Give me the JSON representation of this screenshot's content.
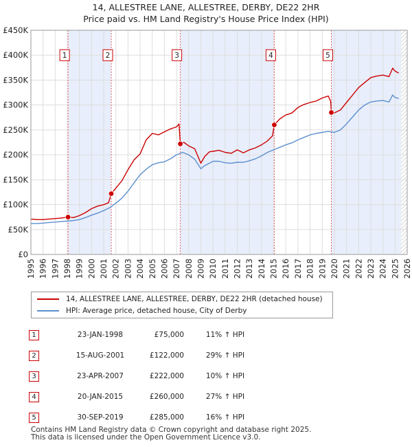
{
  "title": {
    "line1": "14, ALLESTREE LANE, ALLESTREE, DERBY, DE22 2HR",
    "line2": "Price paid vs. HM Land Registry's House Price Index (HPI)"
  },
  "colors": {
    "property": "#cc0000",
    "hpi": "#5b8fd0",
    "shade": "#e8eefb",
    "vline": "#e06060"
  },
  "chart_data": {
    "type": "line",
    "xlim": [
      1995,
      2026
    ],
    "ylim": [
      0,
      450000
    ],
    "x_ticks": [
      "1995",
      "1996",
      "1997",
      "1998",
      "1999",
      "2000",
      "2001",
      "2002",
      "2003",
      "2004",
      "2005",
      "2006",
      "2007",
      "2008",
      "2009",
      "2010",
      "2011",
      "2012",
      "2013",
      "2014",
      "2015",
      "2016",
      "2017",
      "2018",
      "2019",
      "2020",
      "2021",
      "2022",
      "2023",
      "2024",
      "2025",
      "2026"
    ],
    "y_ticks": [
      {
        "value": 0,
        "label": "£0"
      },
      {
        "value": 50000,
        "label": "£50K"
      },
      {
        "value": 100000,
        "label": "£100K"
      },
      {
        "value": 150000,
        "label": "£150K"
      },
      {
        "value": 200000,
        "label": "£200K"
      },
      {
        "value": 250000,
        "label": "£250K"
      },
      {
        "value": 300000,
        "label": "£300K"
      },
      {
        "value": 350000,
        "label": "£350K"
      },
      {
        "value": 400000,
        "label": "£400K"
      },
      {
        "value": 450000,
        "label": "£450K"
      }
    ],
    "shaded_periods": [
      [
        1998.06,
        2001.62
      ],
      [
        2007.31,
        2015.05
      ],
      [
        2019.75,
        2025.5
      ]
    ],
    "hatched_from": 2025.5,
    "series": [
      {
        "name": "14, ALLESTREE LANE, ALLESTREE, DERBY, DE22 2HR (detached house)",
        "color": "#cc0000",
        "x": [
          1995,
          1995.5,
          1996,
          1996.5,
          1997,
          1997.5,
          1998.06,
          1998.5,
          1999,
          1999.5,
          2000,
          2000.5,
          2001,
          2001.4,
          2001.62,
          2002,
          2002.5,
          2003,
          2003.5,
          2004,
          2004.5,
          2005,
          2005.5,
          2006,
          2006.5,
          2007,
          2007.2,
          2007.31,
          2007.6,
          2008,
          2008.5,
          2009,
          2009.3,
          2009.7,
          2010,
          2010.5,
          2011,
          2011.5,
          2012,
          2012.5,
          2013,
          2013.5,
          2014,
          2014.5,
          2014.9,
          2015.05,
          2015.5,
          2016,
          2016.5,
          2017,
          2017.5,
          2018,
          2018.5,
          2019,
          2019.5,
          2019.7,
          2019.75,
          2020,
          2020.5,
          2021,
          2021.5,
          2022,
          2022.5,
          2023,
          2023.5,
          2024,
          2024.5,
          2024.8,
          2025,
          2025.3
        ],
        "y": [
          71000,
          70000,
          70000,
          71000,
          72000,
          73000,
          75000,
          74000,
          78000,
          84000,
          92000,
          97000,
          100000,
          104000,
          122000,
          133000,
          148000,
          170000,
          190000,
          202000,
          230000,
          243000,
          240000,
          246000,
          252000,
          256000,
          262000,
          222000,
          225000,
          218000,
          212000,
          183000,
          196000,
          206000,
          207000,
          209000,
          205000,
          203000,
          210000,
          204000,
          210000,
          214000,
          220000,
          228000,
          238000,
          260000,
          272000,
          280000,
          284000,
          295000,
          301000,
          305000,
          308000,
          314000,
          318000,
          307000,
          285000,
          284000,
          290000,
          305000,
          320000,
          335000,
          345000,
          355000,
          358000,
          360000,
          357000,
          374000,
          368000,
          364000
        ]
      },
      {
        "name": "HPI: Average price, detached house, City of Derby",
        "color": "#5b8fd0",
        "x": [
          1995,
          1995.5,
          1996,
          1996.5,
          1997,
          1997.5,
          1998,
          1998.5,
          1999,
          1999.5,
          2000,
          2000.5,
          2001,
          2001.5,
          2002,
          2002.5,
          2003,
          2003.5,
          2004,
          2004.5,
          2005,
          2005.5,
          2006,
          2006.5,
          2007,
          2007.5,
          2008,
          2008.5,
          2009,
          2009.3,
          2009.7,
          2010,
          2010.5,
          2011,
          2011.5,
          2012,
          2012.5,
          2013,
          2013.5,
          2014,
          2014.5,
          2015,
          2015.5,
          2016,
          2016.5,
          2017,
          2017.5,
          2018,
          2018.5,
          2019,
          2019.5,
          2020,
          2020.5,
          2021,
          2021.5,
          2022,
          2022.5,
          2023,
          2023.5,
          2024,
          2024.5,
          2024.8,
          2025,
          2025.3
        ],
        "y": [
          62000,
          62000,
          63000,
          64000,
          65000,
          66000,
          67000,
          68000,
          70000,
          74000,
          79000,
          83000,
          88000,
          94000,
          103000,
          113000,
          127000,
          144000,
          160000,
          171000,
          180000,
          184000,
          186000,
          192000,
          200000,
          205000,
          200000,
          191000,
          172000,
          178000,
          183000,
          187000,
          187000,
          184000,
          183000,
          185000,
          185000,
          188000,
          192000,
          198000,
          205000,
          210000,
          215000,
          220000,
          224000,
          230000,
          235000,
          240000,
          243000,
          245000,
          247000,
          245000,
          250000,
          262000,
          276000,
          290000,
          300000,
          306000,
          308000,
          309000,
          306000,
          320000,
          315000,
          313000
        ]
      }
    ],
    "sales": [
      {
        "n": "1",
        "date": "23-JAN-1998",
        "x": 1998.06,
        "price": 75000,
        "price_label": "£75,000",
        "hpi": "11% ↑ HPI"
      },
      {
        "n": "2",
        "date": "15-AUG-2001",
        "x": 2001.62,
        "price": 122000,
        "price_label": "£122,000",
        "hpi": "29% ↑ HPI"
      },
      {
        "n": "3",
        "date": "23-APR-2007",
        "x": 2007.31,
        "price": 222000,
        "price_label": "£222,000",
        "hpi": "10% ↑ HPI"
      },
      {
        "n": "4",
        "date": "20-JAN-2015",
        "x": 2015.05,
        "price": 260000,
        "price_label": "£260,000",
        "hpi": "27% ↑ HPI"
      },
      {
        "n": "5",
        "date": "30-SEP-2019",
        "x": 2019.75,
        "price": 285000,
        "price_label": "£285,000",
        "hpi": "16% ↑ HPI"
      }
    ],
    "marker_label_value": 400000
  },
  "legend": {
    "property": "14, ALLESTREE LANE, ALLESTREE, DERBY, DE22 2HR (detached house)",
    "hpi": "HPI: Average price, detached house, City of Derby"
  },
  "footer": {
    "line1": "Contains HM Land Registry data © Crown copyright and database right 2025.",
    "line2": "This data is licensed under the Open Government Licence v3.0."
  }
}
